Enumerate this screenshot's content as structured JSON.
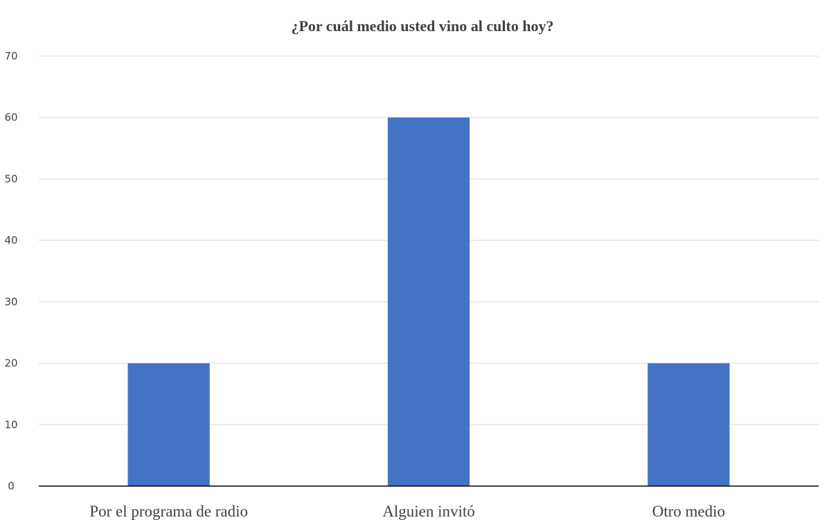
{
  "chart_data": {
    "type": "bar",
    "title": "¿Por cuál medio usted vino al culto hoy?",
    "categories": [
      "Por el programa de radio",
      "Alguien invitó",
      "Otro medio"
    ],
    "values": [
      20,
      60,
      20
    ],
    "ylim": [
      0,
      70
    ],
    "yticks": [
      0,
      10,
      20,
      30,
      40,
      50,
      60,
      70
    ],
    "xlabel": "",
    "ylabel": "",
    "grid": true,
    "legend": "none",
    "bar_color": "#4472C4"
  }
}
